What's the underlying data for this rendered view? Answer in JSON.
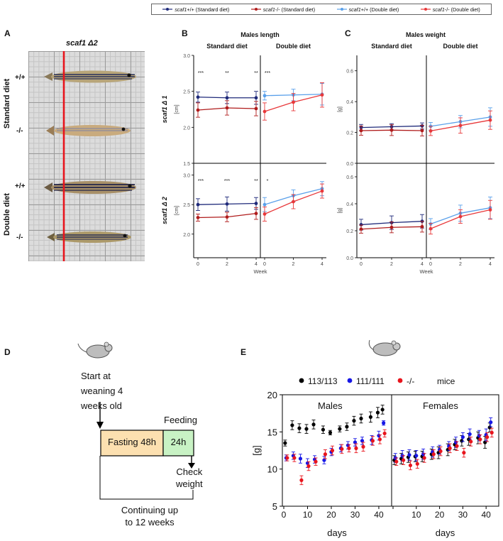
{
  "colors": {
    "navy": "#1f2a7a",
    "darkred": "#b01c1c",
    "lightblue": "#5aa0ea",
    "red": "#e8383a",
    "black": "#000000",
    "blue": "#1717e6",
    "brightred": "#e8141c",
    "fasting_fill": "#fce0b0",
    "feeding_fill": "#c8f2c4",
    "photo_bg": "#d8d8d8"
  },
  "legend_top": [
    {
      "italic": "scaf1",
      "rest": " +/+ (Standard diet)",
      "color": "#1f2a7a"
    },
    {
      "italic": "scaf1",
      "rest": " -/- (Standard diet)",
      "color": "#b01c1c"
    },
    {
      "italic": "scaf1",
      "rest": " +/+ (Double diet)",
      "color": "#5aa0ea"
    },
    {
      "italic": "scaf1",
      "rest": " -/- (Double diet)",
      "color": "#e8383a"
    }
  ],
  "panelA": {
    "letter": "A",
    "title": "scaf1 Δ2",
    "genotypes": [
      "+/+",
      "-/-",
      "+/+",
      "-/-"
    ],
    "diets": [
      "Standard diet",
      "Double diet"
    ]
  },
  "panelB": {
    "letter": "B",
    "title": "Males length"
  },
  "panelC": {
    "letter": "C",
    "title": "Males weight"
  },
  "panelD": {
    "letter": "D",
    "start_text": [
      "Start at",
      "weaning 4",
      "weeks old"
    ],
    "feeding_label": "Feeding",
    "fasting_box": "Fasting 48h",
    "feeding_box": "24h",
    "check_text": [
      "Check",
      "weight"
    ],
    "continuing_text": [
      "Continuing up",
      "to 12 weeks"
    ]
  },
  "panelE": {
    "letter": "E"
  },
  "chart_data": [
    {
      "id": "B",
      "type": "line",
      "title": "Males length",
      "row_labels": [
        "scaf1 Δ 1",
        "scaf1 Δ 2"
      ],
      "column_labels": [
        "Standard diet",
        "Double diet"
      ],
      "xlabel": "Week",
      "ylabel": "[cm]",
      "x_ticks": [
        0,
        2,
        4
      ],
      "rows": [
        {
          "name": "scaf1 Δ 1",
          "ylim": [
            1.5,
            3.0
          ],
          "y_ticks": [
            "1.5",
            "2.0",
            "2.5",
            "3.0"
          ],
          "standard": {
            "annotations": [
              "***",
              "**",
              "**"
            ],
            "series": [
              {
                "name": "scaf1 +/+ (Standard diet)",
                "x": [
                  0,
                  2,
                  4
                ],
                "y": [
                  2.42,
                  2.41,
                  2.41
                ],
                "err": [
                  0.07,
                  0.08,
                  0.09
                ]
              },
              {
                "name": "scaf1 -/- (Standard diet)",
                "x": [
                  0,
                  2,
                  4
                ],
                "y": [
                  2.24,
                  2.27,
                  2.26
                ],
                "err": [
                  0.1,
                  0.1,
                  0.1
                ]
              }
            ]
          },
          "double": {
            "annotations": [
              "***"
            ],
            "series": [
              {
                "name": "scaf1 +/+ (Double diet)",
                "x": [
                  0,
                  2,
                  4
                ],
                "y": [
                  2.44,
                  2.45,
                  2.46
                ],
                "err": [
                  0.06,
                  0.08,
                  0.15
                ]
              },
              {
                "name": "scaf1 -/- (Double diet)",
                "x": [
                  0,
                  2,
                  4
                ],
                "y": [
                  2.22,
                  2.35,
                  2.45
                ],
                "err": [
                  0.12,
                  0.12,
                  0.17
                ]
              }
            ]
          }
        },
        {
          "name": "scaf1 Δ 2",
          "ylim": [
            1.6,
            3.2
          ],
          "y_ticks": [
            "2.0",
            "2.5",
            "3.0"
          ],
          "standard": {
            "annotations": [
              "***",
              "***",
              "**"
            ],
            "series": [
              {
                "name": "scaf1 +/+ (Standard diet)",
                "x": [
                  0,
                  2,
                  4
                ],
                "y": [
                  2.5,
                  2.51,
                  2.52
                ],
                "err": [
                  0.1,
                  0.12,
                  0.1
                ]
              },
              {
                "name": "scaf1 -/- (Standard diet)",
                "x": [
                  0,
                  2,
                  4
                ],
                "y": [
                  2.28,
                  2.29,
                  2.35
                ],
                "err": [
                  0.06,
                  0.08,
                  0.1
                ]
              }
            ]
          },
          "double": {
            "annotations": [
              "*"
            ],
            "series": [
              {
                "name": "scaf1 +/+ (Double diet)",
                "x": [
                  0,
                  2,
                  4
                ],
                "y": [
                  2.5,
                  2.65,
                  2.77
                ],
                "err": [
                  0.12,
                  0.1,
                  0.12
                ]
              },
              {
                "name": "scaf1 -/- (Double diet)",
                "x": [
                  0,
                  2,
                  4
                ],
                "y": [
                  2.34,
                  2.55,
                  2.73
                ],
                "err": [
                  0.12,
                  0.12,
                  0.12
                ]
              }
            ]
          }
        }
      ]
    },
    {
      "id": "C",
      "type": "line",
      "title": "Males weight",
      "column_labels": [
        "Standard diet",
        "Double diet"
      ],
      "xlabel": "Week",
      "ylabel": "[g]",
      "x_ticks": [
        0,
        2,
        4
      ],
      "rows": [
        {
          "ylim": [
            0.0,
            0.7
          ],
          "y_ticks": [
            "0.0",
            "0.2",
            "0.4",
            "0.6"
          ],
          "standard": {
            "series": [
              {
                "name": "scaf1 +/+ (Standard diet)",
                "x": [
                  0,
                  2,
                  4
                ],
                "y": [
                  0.232,
                  0.237,
                  0.242
                ],
                "err": [
                  0.02,
                  0.02,
                  0.02
                ]
              },
              {
                "name": "scaf1 -/- (Standard diet)",
                "x": [
                  0,
                  2,
                  4
                ],
                "y": [
                  0.212,
                  0.215,
                  0.212
                ],
                "err": [
                  0.03,
                  0.035,
                  0.035
                ]
              }
            ]
          },
          "double": {
            "series": [
              {
                "name": "scaf1 +/+ (Double diet)",
                "x": [
                  0,
                  2,
                  4
                ],
                "y": [
                  0.24,
                  0.27,
                  0.3
                ],
                "err": [
                  0.025,
                  0.04,
                  0.06
                ]
              },
              {
                "name": "scaf1 -/- (Double diet)",
                "x": [
                  0,
                  2,
                  4
                ],
                "y": [
                  0.21,
                  0.245,
                  0.28
                ],
                "err": [
                  0.03,
                  0.05,
                  0.06
                ]
              }
            ]
          }
        },
        {
          "ylim": [
            0.0,
            0.7
          ],
          "y_ticks": [
            "0.0",
            "0.2",
            "0.4",
            "0.6"
          ],
          "standard": {
            "series": [
              {
                "name": "scaf1 +/+ (Standard diet)",
                "x": [
                  0,
                  2,
                  4
                ],
                "y": [
                  0.245,
                  0.26,
                  0.27
                ],
                "err": [
                  0.04,
                  0.05,
                  0.05
                ]
              },
              {
                "name": "scaf1 -/- (Standard diet)",
                "x": [
                  0,
                  2,
                  4
                ],
                "y": [
                  0.212,
                  0.225,
                  0.23
                ],
                "err": [
                  0.03,
                  0.04,
                  0.04
                ]
              }
            ]
          },
          "double": {
            "series": [
              {
                "name": "scaf1 +/+ (Double diet)",
                "x": [
                  0,
                  2,
                  4
                ],
                "y": [
                  0.25,
                  0.33,
                  0.37
                ],
                "err": [
                  0.04,
                  0.06,
                  0.08
                ]
              },
              {
                "name": "scaf1 -/- (Double diet)",
                "x": [
                  0,
                  2,
                  4
                ],
                "y": [
                  0.215,
                  0.305,
                  0.355
                ],
                "err": [
                  0.04,
                  0.05,
                  0.07
                ]
              }
            ]
          }
        }
      ]
    },
    {
      "id": "E",
      "type": "scatter",
      "legend": [
        {
          "name": "113/113",
          "color": "#000000"
        },
        {
          "name": "111/111",
          "color": "#1717e6"
        },
        {
          "name": "-/-",
          "color": "#e8141c"
        }
      ],
      "legend_suffix": "mice",
      "facets": [
        "Males",
        "Females"
      ],
      "xlabel": "days",
      "ylabel": "[g]",
      "ylim": [
        5,
        20
      ],
      "y_ticks": [
        5,
        10,
        15,
        20
      ],
      "x_ticks": [
        0,
        10,
        20,
        30,
        40
      ],
      "xlim": [
        0,
        43
      ],
      "males": [
        {
          "name": "113/113",
          "x": [
            1,
            4,
            7,
            10,
            13,
            17,
            20,
            24,
            27,
            30,
            33,
            37,
            40,
            42
          ],
          "y": [
            13.5,
            15.9,
            15.5,
            15.4,
            16.0,
            15.3,
            14.9,
            15.4,
            15.7,
            16.5,
            16.8,
            17.0,
            17.6,
            18.0
          ],
          "err": [
            0.4,
            0.6,
            0.6,
            0.6,
            0.6,
            0.5,
            0.3,
            0.4,
            0.5,
            0.6,
            0.6,
            0.7,
            0.7,
            0.6
          ]
        },
        {
          "name": "111/111",
          "x": [
            1,
            4,
            7,
            10,
            13,
            17,
            20,
            24,
            27,
            30,
            33,
            37,
            40,
            42
          ],
          "y": [
            11.5,
            11.8,
            11.4,
            10.8,
            11.3,
            11.2,
            12.3,
            12.8,
            13.2,
            13.6,
            13.8,
            13.9,
            14.5,
            16.2
          ],
          "err": [
            0.4,
            0.5,
            0.6,
            0.6,
            0.5,
            0.5,
            0.5,
            0.5,
            0.5,
            0.5,
            0.5,
            0.6,
            0.6,
            0.3
          ]
        },
        {
          "name": "-/-",
          "x": [
            1,
            4,
            7,
            10,
            13,
            17,
            20,
            24,
            27,
            30,
            33,
            37,
            40,
            42
          ],
          "y": [
            11.5,
            11.5,
            8.5,
            10.4,
            11.0,
            12.0,
            12.5,
            12.7,
            12.8,
            12.8,
            13.0,
            13.8,
            14.0,
            14.8
          ],
          "err": [
            0.4,
            0.5,
            0.6,
            0.6,
            0.5,
            0.6,
            0.6,
            0.6,
            0.5,
            0.6,
            0.6,
            0.6,
            0.6,
            0.5
          ]
        }
      ],
      "females": [
        {
          "name": "113/113",
          "x": [
            1,
            4,
            7,
            10,
            13,
            17,
            20,
            24,
            27,
            30,
            33,
            37,
            40,
            42
          ],
          "y": [
            11.2,
            11.4,
            11.6,
            11.7,
            11.7,
            12.0,
            12.2,
            12.6,
            13.3,
            13.8,
            14.0,
            14.2,
            13.6,
            15.6
          ],
          "err": [
            0.6,
            0.7,
            0.7,
            0.7,
            0.7,
            0.7,
            0.8,
            0.8,
            0.7,
            0.7,
            0.8,
            0.8,
            0.8,
            0.6
          ]
        },
        {
          "name": "111/111",
          "x": [
            1,
            4,
            7,
            10,
            13,
            17,
            20,
            24,
            27,
            30,
            33,
            37,
            40,
            42
          ],
          "y": [
            11.5,
            11.8,
            11.9,
            11.8,
            12.0,
            12.3,
            12.6,
            13.1,
            13.6,
            14.3,
            14.7,
            14.5,
            14.6,
            16.3
          ],
          "err": [
            0.6,
            0.7,
            0.7,
            0.7,
            0.7,
            0.7,
            0.6,
            0.6,
            0.7,
            0.6,
            0.7,
            0.7,
            0.8,
            0.6
          ]
        },
        {
          "name": "-/-",
          "x": [
            1,
            4,
            7,
            10,
            13,
            17,
            20,
            24,
            27,
            30,
            33,
            37,
            40,
            42
          ],
          "y": [
            11.0,
            11.2,
            10.5,
            10.7,
            11.5,
            12.0,
            12.4,
            12.8,
            13.1,
            12.2,
            13.7,
            14.0,
            14.3,
            14.9
          ],
          "err": [
            0.5,
            0.6,
            0.6,
            0.6,
            0.6,
            0.6,
            0.6,
            0.6,
            0.6,
            0.6,
            0.6,
            0.6,
            0.6,
            0.6
          ]
        }
      ]
    }
  ]
}
